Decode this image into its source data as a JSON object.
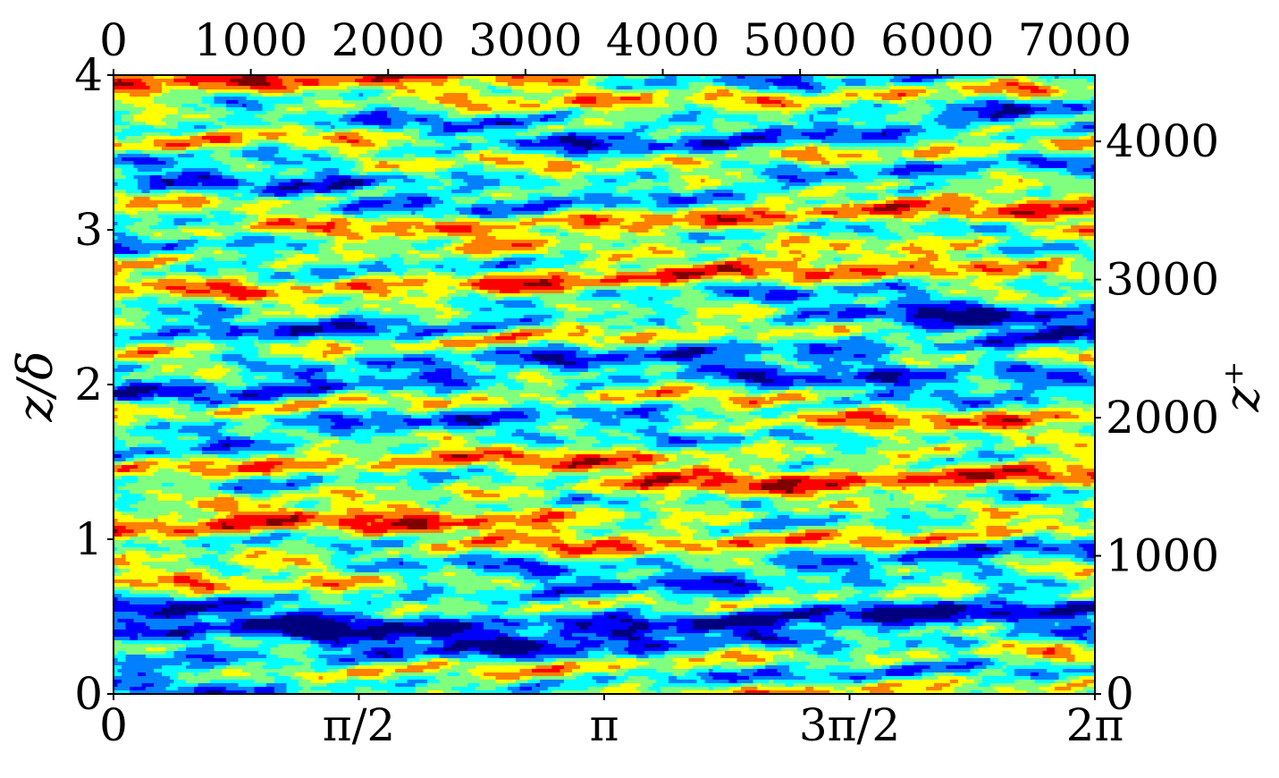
{
  "chart_data": {
    "type": "heatmap",
    "colormap": "jet",
    "colors": [
      "#00007f",
      "#0000ff",
      "#007fff",
      "#00ffff",
      "#7fff7f",
      "#ffff00",
      "#ff7f00",
      "#ff0000",
      "#7f0000"
    ],
    "bottom_axis": {
      "range": [
        0,
        6.283185
      ],
      "ticks": [
        {
          "value": 0,
          "label": "0"
        },
        {
          "value": 1.570796,
          "label": "π/2"
        },
        {
          "value": 3.141593,
          "label": "π"
        },
        {
          "value": 4.712389,
          "label": "3π/2"
        },
        {
          "value": 6.283185,
          "label": "2π"
        }
      ]
    },
    "top_axis": {
      "range": [
        0,
        7147
      ],
      "ticks": [
        {
          "value": 0,
          "label": "0"
        },
        {
          "value": 1000,
          "label": "1000"
        },
        {
          "value": 2000,
          "label": "2000"
        },
        {
          "value": 3000,
          "label": "3000"
        },
        {
          "value": 4000,
          "label": "4000"
        },
        {
          "value": 5000,
          "label": "5000"
        },
        {
          "value": 6000,
          "label": "6000"
        },
        {
          "value": 7000,
          "label": "7000"
        }
      ]
    },
    "left_axis": {
      "label": "z/δ",
      "range": [
        0,
        4
      ],
      "ticks": [
        {
          "value": 0,
          "label": "0"
        },
        {
          "value": 1,
          "label": "1"
        },
        {
          "value": 2,
          "label": "2"
        },
        {
          "value": 3,
          "label": "3"
        },
        {
          "value": 4,
          "label": "4"
        }
      ]
    },
    "right_axis": {
      "label": "z⁺",
      "range": [
        0,
        4480
      ],
      "ticks": [
        {
          "value": 0,
          "label": "0"
        },
        {
          "value": 1000,
          "label": "1000"
        },
        {
          "value": 2000,
          "label": "2000"
        },
        {
          "value": 3000,
          "label": "3000"
        },
        {
          "value": 4000,
          "label": "4000"
        }
      ]
    },
    "grid": false
  }
}
